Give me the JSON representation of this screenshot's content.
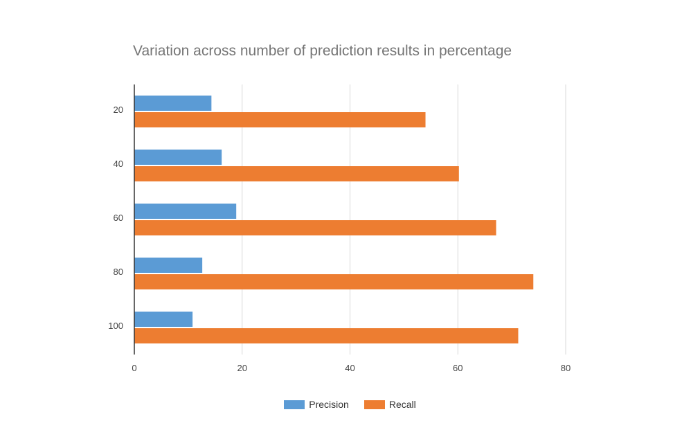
{
  "chart_data": {
    "type": "bar",
    "orientation": "horizontal",
    "title": "Variation across number of prediction results in percentage",
    "categories": [
      "20",
      "40",
      "60",
      "80",
      "100"
    ],
    "series": [
      {
        "name": "Precision",
        "color": "#5b9bd5",
        "values": [
          14.3,
          16.2,
          18.9,
          12.6,
          10.8
        ]
      },
      {
        "name": "Recall",
        "color": "#ed7d31",
        "values": [
          54.0,
          60.2,
          67.1,
          74.0,
          71.2
        ]
      }
    ],
    "xlim": [
      0,
      80
    ],
    "xticks": [
      "0",
      "20",
      "40",
      "60",
      "80"
    ],
    "grid": true,
    "legend": "bottom"
  }
}
